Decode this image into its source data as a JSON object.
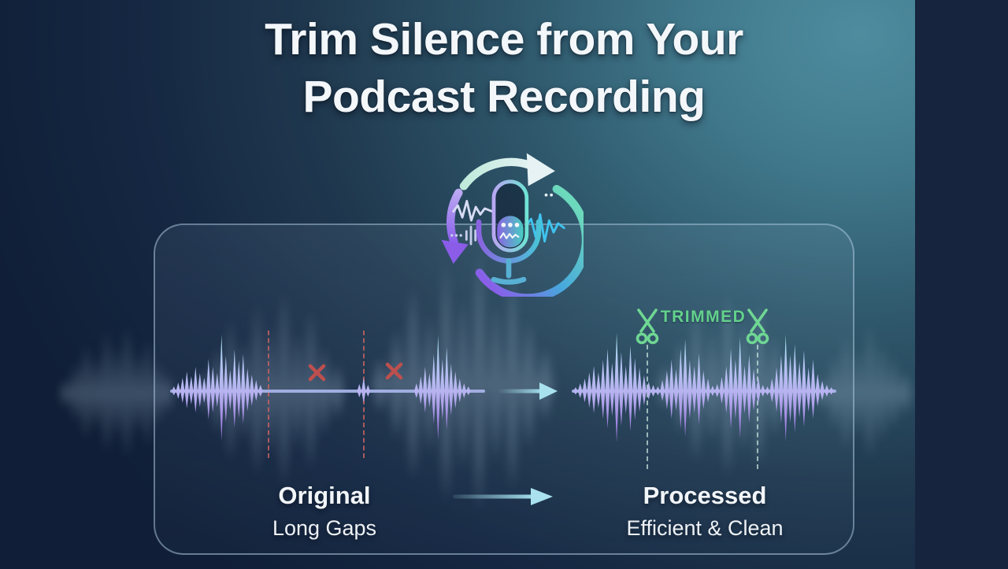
{
  "title": {
    "line1": "Trim Silence from Your",
    "line2": "Podcast Recording"
  },
  "comparison": {
    "original": {
      "heading": "Original",
      "subheading": "Long Gaps"
    },
    "processed": {
      "heading": "Processed",
      "subheading": "Efficient & Clean",
      "trimmed_label": "TRIMMED"
    }
  },
  "icons": {
    "center_icon": "microphone-refresh-cycle-icon",
    "cut_icon": "scissors-icon",
    "removed_icon": "x-mark-icon",
    "flow_icon": "right-arrow-icon"
  },
  "colors": {
    "background_navy": "#101f37",
    "background_teal": "#4e8c9f",
    "side_band_navy": "#16243e",
    "accent_green": "#63d28c",
    "warning_red": "#c4504d",
    "waveform_mint": "#98ecd8",
    "waveform_lavender": "#b7b3f0",
    "waveform_purple": "#8a66cf",
    "arrow_cyan": "#a0dcea",
    "panel_border": "rgba(178,206,226,0.5)"
  }
}
